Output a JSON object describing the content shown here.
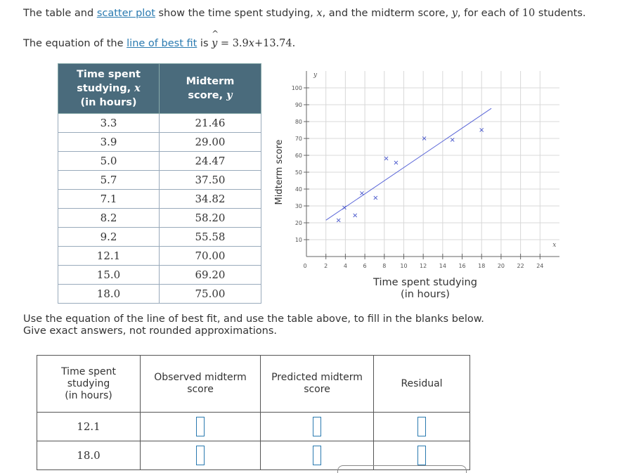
{
  "intro": {
    "p1": "The table and ",
    "link1": "scatter plot",
    "p2": " show the time spent studying, ",
    "var_x": "x",
    "p3": ", and the midterm score, ",
    "var_y": "y",
    "p4": ", for each of ",
    "count": "10",
    "p5": " students."
  },
  "equation_line": {
    "p1": "The equation of the ",
    "link": "line of best fit",
    "p2": " is ",
    "lhs": "y",
    "hat": "^",
    "eq": " = 3.9",
    "x": "x",
    "rest": "+13.74."
  },
  "data_table": {
    "header_time": [
      "Time spent",
      "studying, ",
      "x",
      "(in hours)"
    ],
    "header_score": [
      "Midterm",
      "score, ",
      "y"
    ],
    "rows": [
      [
        "3.3",
        "21.46"
      ],
      [
        "3.9",
        "29.00"
      ],
      [
        "5.0",
        "24.47"
      ],
      [
        "5.7",
        "37.50"
      ],
      [
        "7.1",
        "34.82"
      ],
      [
        "8.2",
        "58.20"
      ],
      [
        "9.2",
        "55.58"
      ],
      [
        "12.1",
        "70.00"
      ],
      [
        "15.0",
        "69.20"
      ],
      [
        "18.0",
        "75.00"
      ]
    ]
  },
  "chart_data": {
    "type": "scatter",
    "xlabel": "Time spent studying (in hours)",
    "xlabel_lines": [
      "Time spent studying",
      "(in hours)"
    ],
    "ylabel": "Midterm score",
    "x_axis_var": "x",
    "y_axis_var": "y",
    "xlim": [
      0,
      26
    ],
    "ylim": [
      0,
      110
    ],
    "x_ticks": [
      2,
      4,
      6,
      8,
      10,
      12,
      14,
      16,
      18,
      20,
      22,
      24
    ],
    "y_ticks": [
      10,
      20,
      30,
      40,
      50,
      60,
      70,
      80,
      90,
      100
    ],
    "origin_label": "0",
    "grid": true,
    "marker": "×",
    "points": [
      {
        "x": 3.3,
        "y": 21.46
      },
      {
        "x": 3.9,
        "y": 29.0
      },
      {
        "x": 5.0,
        "y": 24.47
      },
      {
        "x": 5.7,
        "y": 37.5
      },
      {
        "x": 7.1,
        "y": 34.82
      },
      {
        "x": 8.2,
        "y": 58.2
      },
      {
        "x": 9.2,
        "y": 55.58
      },
      {
        "x": 12.1,
        "y": 70.0
      },
      {
        "x": 15.0,
        "y": 69.2
      },
      {
        "x": 18.0,
        "y": 75.0
      }
    ],
    "line_of_best_fit": {
      "slope": 3.9,
      "intercept": 13.74,
      "x_start": 2.0,
      "x_end": 19.0
    },
    "colors": {
      "points": "#3b4bc8",
      "line": "#5a66d8",
      "grid": "#d8d8d8",
      "axis": "#666666"
    }
  },
  "instructions": {
    "line1": "Use the equation of the line of best fit, and use the table above, to fill in the blanks below.",
    "line2": "Give exact answers, not rounded approximations."
  },
  "fill_table": {
    "headers": [
      [
        "Time spent",
        "studying",
        "(in hours)"
      ],
      [
        "Observed midterm",
        "score"
      ],
      [
        "Predicted midterm",
        "score"
      ],
      [
        "Residual"
      ]
    ],
    "rows": [
      {
        "time": "12.1"
      },
      {
        "time": "18.0"
      }
    ]
  }
}
